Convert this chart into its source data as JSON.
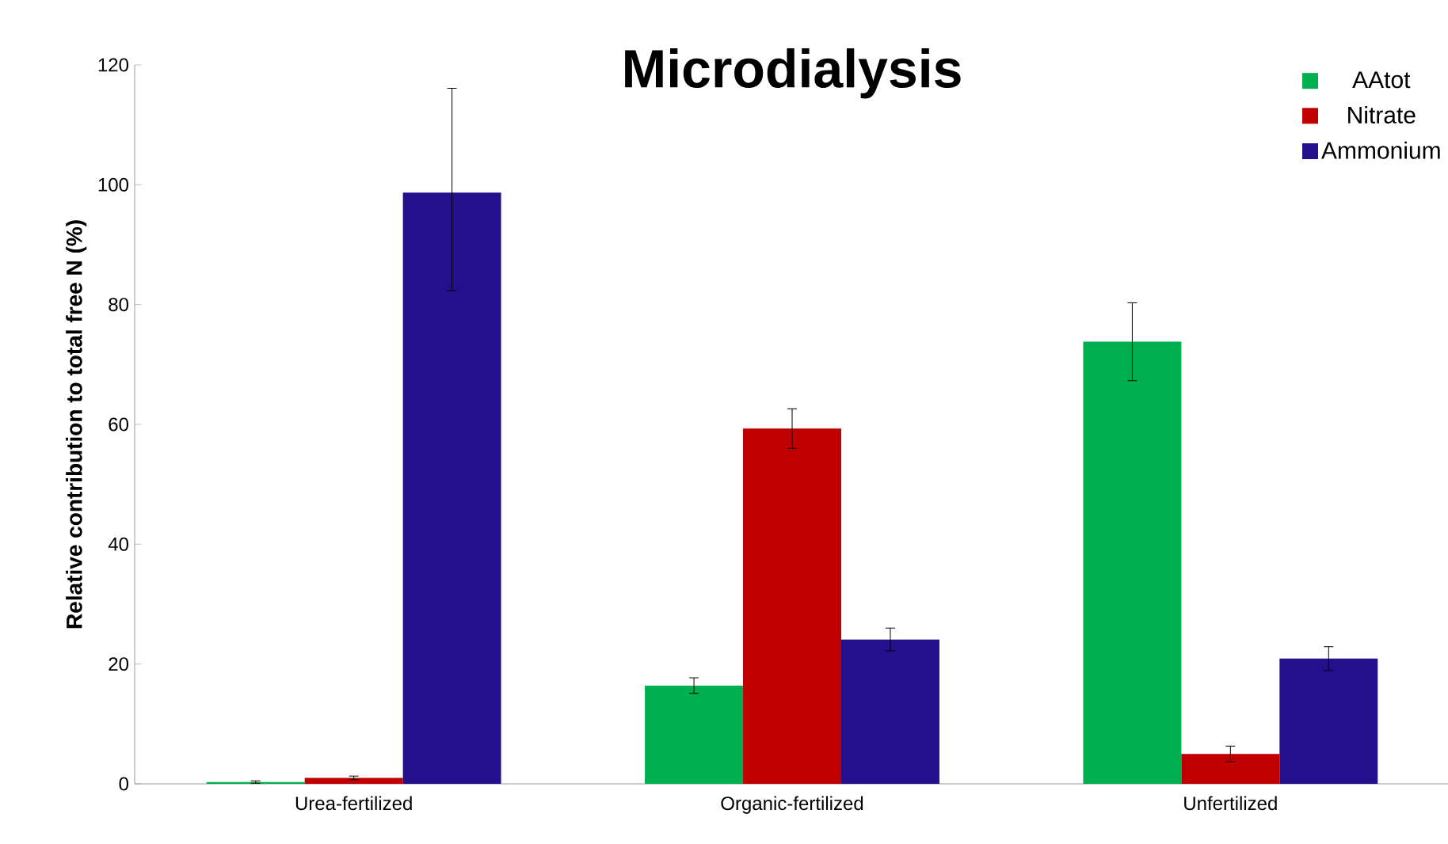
{
  "chart_data": {
    "type": "bar",
    "title": "Microdialysis",
    "ylabel": "Relative contribution to total free N (%)",
    "categories": [
      "Urea-fertilized",
      "Organic-fertilized",
      "Unfertilized"
    ],
    "series": [
      {
        "name": "AAtot",
        "color": "#00b050",
        "values": [
          0.3,
          16.4,
          73.8
        ],
        "errors": [
          0.2,
          1.3,
          6.5
        ]
      },
      {
        "name": "Nitrate",
        "color": "#c00000",
        "values": [
          1.0,
          59.3,
          5.0
        ],
        "errors": [
          0.3,
          3.3,
          1.3
        ]
      },
      {
        "name": "Ammonium",
        "color": "#24108c",
        "values": [
          98.7,
          24.1,
          20.9
        ],
        "errors": [
          [
            82.3,
            116.1
          ],
          1.9,
          2.0
        ]
      }
    ],
    "ylim": [
      0,
      120
    ],
    "yticks": [
      0,
      20,
      40,
      60,
      80,
      100,
      120
    ],
    "grid": false,
    "legend": "top right"
  }
}
